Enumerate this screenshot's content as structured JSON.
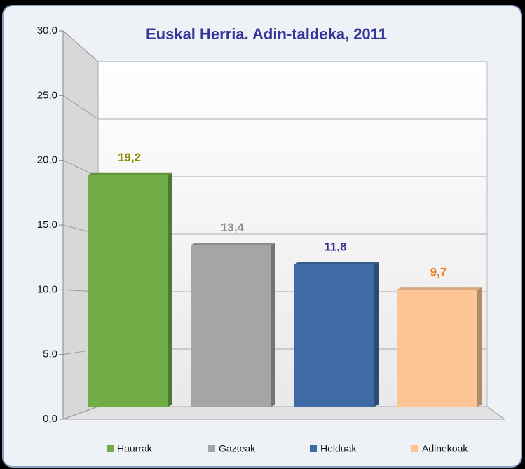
{
  "chart_data": {
    "type": "bar",
    "title": "Euskal Herria. Adin-taldeka, 2011",
    "categories": [
      "Haurrak",
      "Gazteak",
      "Helduak",
      "Adinekoak"
    ],
    "values": [
      19.2,
      13.4,
      11.8,
      9.7
    ],
    "value_labels": [
      "19,2",
      "13,4",
      "11,8",
      "9,7"
    ],
    "colors": [
      "#70ad47",
      "#a5a5a5",
      "#3e6aa5",
      "#fdc595"
    ],
    "label_colors": [
      "#8c8c00",
      "#8c8c8c",
      "#2e2e8c",
      "#f07818"
    ],
    "ylim": [
      0,
      30
    ],
    "yticks": [
      {
        "value": 0,
        "label": "0,0"
      },
      {
        "value": 5,
        "label": "5,0"
      },
      {
        "value": 10,
        "label": "10,0"
      },
      {
        "value": 15,
        "label": "15,0"
      },
      {
        "value": 20,
        "label": "20,0"
      },
      {
        "value": 25,
        "label": "25,0"
      },
      {
        "value": 30,
        "label": "30,0"
      }
    ],
    "grid": true,
    "legend": "bottom"
  }
}
